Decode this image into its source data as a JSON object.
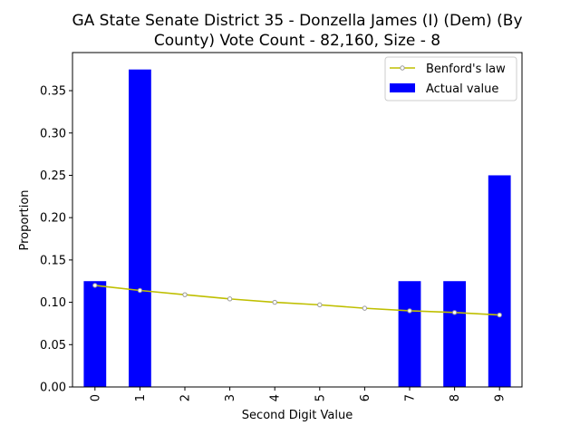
{
  "chart_data": {
    "type": "bar",
    "title_line1": "GA State Senate District 35 - Donzella James (I) (Dem) (By",
    "title_line2": "County) Vote Count - 82,160, Size - 8",
    "xlabel": "Second Digit Value",
    "ylabel": "Proportion",
    "categories": [
      "0",
      "1",
      "2",
      "3",
      "4",
      "5",
      "6",
      "7",
      "8",
      "9"
    ],
    "ylim": [
      0,
      0.395
    ],
    "yticks": [
      "0.00",
      "0.05",
      "0.10",
      "0.15",
      "0.20",
      "0.25",
      "0.30",
      "0.35"
    ],
    "grid": false,
    "legend_position": "top-right",
    "series": [
      {
        "name": "Actual value",
        "type": "bar",
        "color": "#0000ff",
        "values": [
          0.125,
          0.375,
          0.0,
          0.0,
          0.0,
          0.0,
          0.0,
          0.125,
          0.125,
          0.25
        ]
      },
      {
        "name": "Benford's law",
        "type": "line",
        "color": "#bfbf00",
        "marker_color": "#999999",
        "values": [
          0.12,
          0.114,
          0.109,
          0.104,
          0.1,
          0.097,
          0.093,
          0.09,
          0.088,
          0.085
        ]
      }
    ]
  }
}
